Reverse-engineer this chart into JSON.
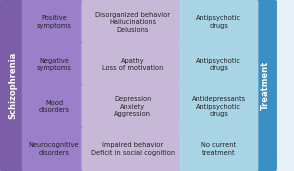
{
  "rows": [
    {
      "col1": "Positive\nsymptoms",
      "col2": "Disorganized behavior\nHallucinations\nDelusions",
      "col3": "Antipsychotic\ndrugs"
    },
    {
      "col1": "Negative\nsymptoms",
      "col2": "Apathy\nLoss of motivation",
      "col3": "Antipsychotic\ndrugs"
    },
    {
      "col1": "Mood\ndisorders",
      "col2": "Depression\nAnxiety\nAggression",
      "col3": "Antidepressants\nAntipsychotic\ndrugs"
    },
    {
      "col1": "Neurocognitive\ndisorders",
      "col2": "Impaired behavior\nDeficit in social cognition",
      "col3": "No current\ntreatment"
    }
  ],
  "col1_color": "#9b7fc8",
  "col2_color": "#c8b8d8",
  "col3_color": "#a8d4e6",
  "left_bar_color": "#7b5ea7",
  "right_bar_color": "#3a8fc4",
  "left_label": "Schizophrenia",
  "right_label": "Treatment",
  "text_color": "#222222",
  "bg_color": "#e8f0f8",
  "cell_text_fontsize": 4.8,
  "label_fontsize": 6.0
}
